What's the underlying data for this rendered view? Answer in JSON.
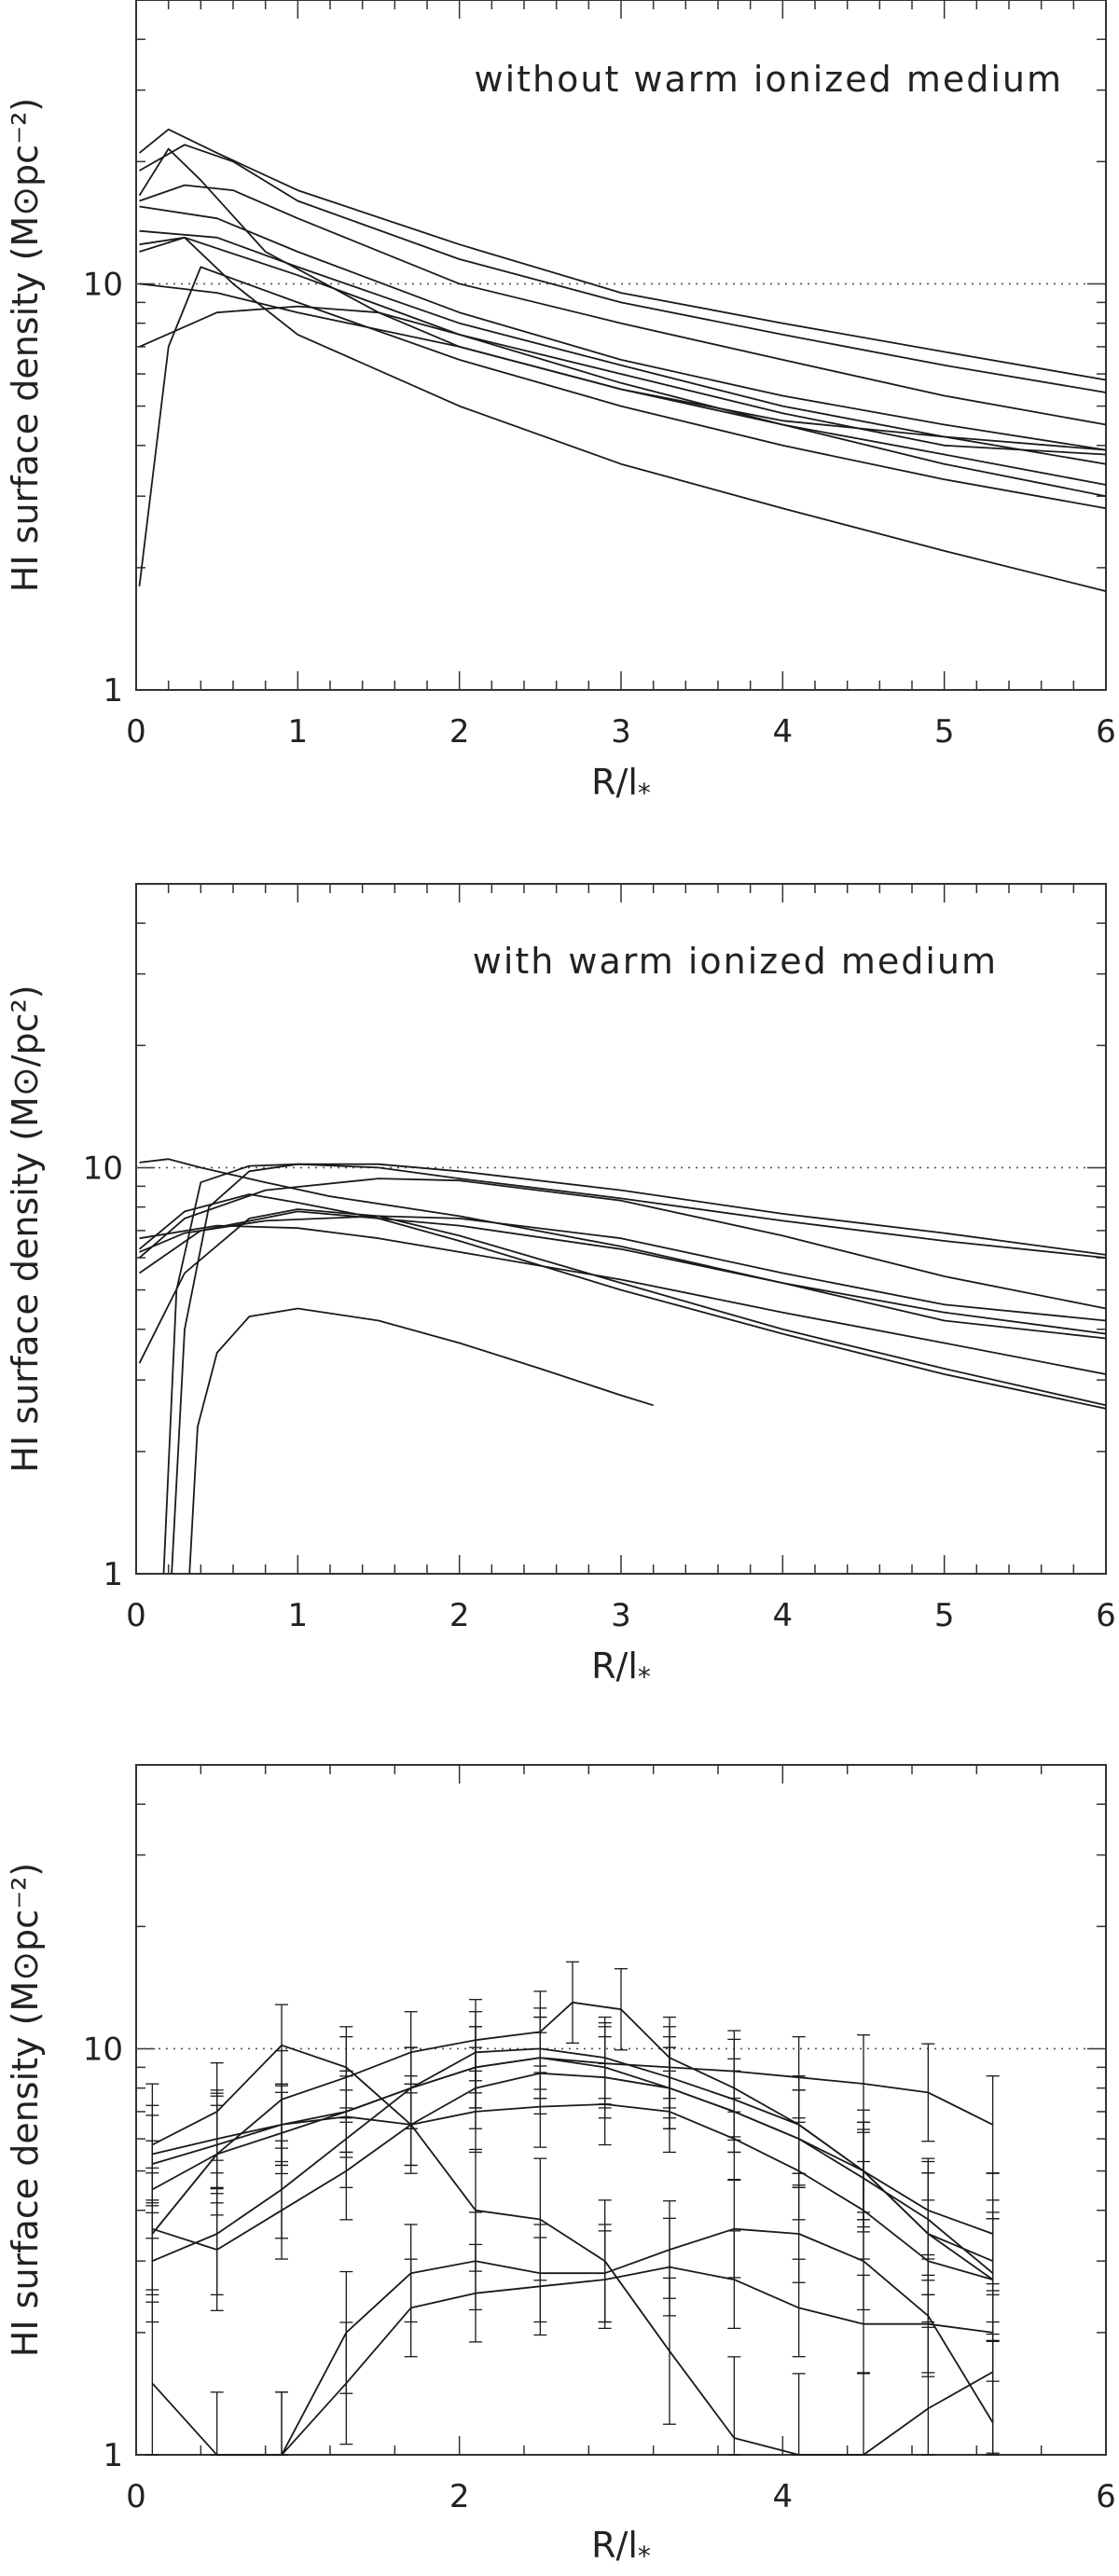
{
  "chart_data": [
    {
      "type": "line",
      "yscale": "log",
      "xlim": [
        0,
        6
      ],
      "ylim": [
        1,
        50
      ],
      "xticks": [
        "0",
        "1",
        "2",
        "3",
        "4",
        "5",
        "6"
      ],
      "yticks": [
        "1",
        "10"
      ],
      "xlabel": "R/l*",
      "ylabel": "HI surface density (M⊙pc⁻²)",
      "annotation": "without warm ionized medium",
      "reference_line_y": 10,
      "grid": false,
      "series": [
        {
          "x": [
            0.02,
            0.2,
            0.5,
            1,
            2,
            3,
            4,
            5,
            6
          ],
          "y": [
            21,
            24,
            21,
            17,
            12.5,
            9.5,
            8,
            6.8,
            5.8
          ]
        },
        {
          "x": [
            0.02,
            0.3,
            0.6,
            1,
            2,
            3,
            4,
            5,
            6
          ],
          "y": [
            19,
            22,
            20,
            16,
            11.5,
            9,
            7.5,
            6.3,
            5.4
          ]
        },
        {
          "x": [
            0.02,
            0.2,
            0.4,
            0.8,
            1.5,
            2,
            3,
            4,
            5,
            6
          ],
          "y": [
            16.5,
            21.5,
            18,
            12,
            8.5,
            7,
            5.5,
            4.6,
            4.2,
            3.9
          ]
        },
        {
          "x": [
            0.02,
            0.3,
            0.6,
            1,
            2,
            3,
            4,
            5,
            6
          ],
          "y": [
            16,
            17.5,
            17,
            14.5,
            10,
            8,
            6.5,
            5.3,
            4.5
          ]
        },
        {
          "x": [
            0.02,
            0.5,
            1,
            2,
            3,
            4,
            5,
            6
          ],
          "y": [
            15.5,
            14.5,
            12,
            8.5,
            6.5,
            5.3,
            4.5,
            3.9
          ]
        },
        {
          "x": [
            0.02,
            0.5,
            1,
            2,
            3,
            4,
            5,
            6
          ],
          "y": [
            13.5,
            13,
            11,
            8,
            6.3,
            5,
            4.2,
            3.6
          ]
        },
        {
          "x": [
            0.02,
            0.3,
            1,
            2,
            3,
            4,
            5,
            6
          ],
          "y": [
            12.5,
            13,
            10.5,
            7.5,
            5.7,
            4.5,
            3.6,
            3.0
          ]
        },
        {
          "x": [
            0.02,
            0.2,
            0.4,
            1,
            2,
            3,
            4,
            5,
            6
          ],
          "y": [
            1.8,
            7,
            11,
            9,
            6.5,
            5,
            4,
            3.3,
            2.8
          ]
        },
        {
          "x": [
            0.02,
            0.5,
            1,
            1.5,
            2,
            3,
            4,
            5,
            6
          ],
          "y": [
            7,
            8.5,
            8.8,
            8.5,
            7.5,
            6,
            4.8,
            4,
            3.8
          ]
        },
        {
          "x": [
            0.02,
            0.5,
            1,
            2,
            3,
            4,
            5,
            6
          ],
          "y": [
            10,
            9.5,
            8.5,
            7,
            5.5,
            4.5,
            3.8,
            3.2
          ]
        },
        {
          "x": [
            0.02,
            0.3,
            0.6,
            1,
            2,
            3,
            4,
            5,
            6
          ],
          "y": [
            12,
            13,
            10,
            7.5,
            5,
            3.6,
            2.8,
            2.2,
            1.75
          ]
        }
      ]
    },
    {
      "type": "line",
      "yscale": "log",
      "xlim": [
        0,
        6
      ],
      "ylim": [
        1,
        50
      ],
      "xticks": [
        "0",
        "1",
        "2",
        "3",
        "4",
        "5",
        "6"
      ],
      "yticks": [
        "1",
        "10"
      ],
      "xlabel": "R/l*",
      "ylabel": "HI surface density (M⊙/pc²)",
      "annotation": "with warm ionized medium",
      "reference_line_y": 10,
      "grid": false,
      "series": [
        {
          "x": [
            0.02,
            0.2,
            0.4,
            0.8,
            1.2,
            2,
            3,
            4,
            5,
            6
          ],
          "y": [
            10.3,
            10.5,
            10,
            9.2,
            8.5,
            7.6,
            6.4,
            5.2,
            4.2,
            3.8
          ]
        },
        {
          "x": [
            0.22,
            0.3,
            0.45,
            0.7,
            1,
            1.5,
            2,
            3,
            4,
            5,
            6
          ],
          "y": [
            1,
            4,
            8,
            9.8,
            10.2,
            10.2,
            9.8,
            8.8,
            7.7,
            6.9,
            6.1
          ]
        },
        {
          "x": [
            0.17,
            0.25,
            0.4,
            0.7,
            1,
            1.5,
            2,
            3,
            4,
            5,
            6
          ],
          "y": [
            1,
            5,
            9.2,
            10.1,
            10.2,
            10,
            9.4,
            8.4,
            7.4,
            6.6,
            6.0
          ]
        },
        {
          "x": [
            0.02,
            0.3,
            0.8,
            1.5,
            2,
            3,
            4,
            5,
            6
          ],
          "y": [
            6,
            7.5,
            8.8,
            9.4,
            9.3,
            8.3,
            6.8,
            5.4,
            4.5
          ]
        },
        {
          "x": [
            0.02,
            0.3,
            0.8,
            1.5,
            2,
            3,
            4,
            5,
            6
          ],
          "y": [
            6.2,
            6.9,
            7.4,
            7.6,
            7.5,
            6.7,
            5.5,
            4.6,
            4.2
          ]
        },
        {
          "x": [
            0.02,
            0.4,
            1,
            1.5,
            2,
            3,
            4,
            5,
            6
          ],
          "y": [
            5.5,
            7,
            7.8,
            7.5,
            7.2,
            6.3,
            5.2,
            4.4,
            3.9
          ]
        },
        {
          "x": [
            0.02,
            0.5,
            1,
            1.5,
            2,
            3,
            4,
            5,
            6
          ],
          "y": [
            6.7,
            7.2,
            7.1,
            6.7,
            6.2,
            5.3,
            4.4,
            3.7,
            3.1
          ]
        },
        {
          "x": [
            0.02,
            0.3,
            0.7,
            1,
            1.5,
            2,
            3,
            4,
            5,
            6
          ],
          "y": [
            3.3,
            5.5,
            7.5,
            7.9,
            7.6,
            6.8,
            5.2,
            4,
            3.2,
            2.6
          ]
        },
        {
          "x": [
            0.02,
            0.3,
            0.7,
            1,
            1.5,
            2,
            3,
            4,
            5,
            6
          ],
          "y": [
            6.3,
            7.8,
            8.6,
            8.2,
            7.5,
            6.6,
            5,
            3.9,
            3.1,
            2.55
          ]
        },
        {
          "x": [
            0.33,
            0.38,
            0.5,
            0.7,
            1,
            1.5,
            2,
            2.5,
            3,
            3.2
          ],
          "y": [
            1,
            2.3,
            3.5,
            4.3,
            4.5,
            4.2,
            3.7,
            3.2,
            2.75,
            2.6
          ]
        }
      ]
    },
    {
      "type": "line",
      "yscale": "log",
      "xlim": [
        0,
        6
      ],
      "ylim": [
        1,
        50
      ],
      "xticks": [
        "0",
        "2",
        "4",
        "6"
      ],
      "yticks": [
        "1",
        "10"
      ],
      "xlabel": "R/l*",
      "ylabel": "HI surface density (M⊙pc⁻²)",
      "reference_line_y": 10,
      "error_bars": true,
      "grid": false,
      "series": [
        {
          "x": [
            0.1,
            0.5,
            0.9,
            1.3,
            1.7,
            2.1,
            2.5,
            2.7,
            3.0,
            3.3,
            3.7,
            4.1,
            4.5,
            4.9,
            5.3
          ],
          "y": [
            3.5,
            5.5,
            7.5,
            8.5,
            9.8,
            10.5,
            11,
            13,
            12.5,
            9.5,
            8,
            6.5,
            5,
            3.5,
            2.7
          ],
          "err": [
            0.15,
            0.15,
            0.12,
            0.1,
            0.1,
            0.1,
            0.1,
            0.1,
            0.1,
            0.1,
            0.12,
            0.12,
            0.15,
            0.15,
            0.15
          ]
        },
        {
          "x": [
            0.1,
            0.5,
            0.9,
            1.3,
            1.7,
            2.1,
            2.5,
            2.9,
            3.3,
            3.7,
            4.1,
            4.5,
            4.9,
            5.3
          ],
          "y": [
            5.5,
            6,
            6.5,
            7,
            8,
            9,
            9.5,
            9.2,
            9,
            8.8,
            8.5,
            8.2,
            7.8,
            6.5
          ],
          "err": [
            0.12,
            0.12,
            0.1,
            0.1,
            0.1,
            0.1,
            0.1,
            0.1,
            0.1,
            0.1,
            0.1,
            0.12,
            0.12,
            0.12
          ]
        },
        {
          "x": [
            0.1,
            0.5,
            0.9,
            1.3,
            1.7,
            2.1,
            2.5,
            2.9,
            3.3,
            3.7,
            4.1,
            4.5,
            4.9,
            5.3
          ],
          "y": [
            5.8,
            7,
            10.2,
            9,
            6.5,
            4,
            3.8,
            3,
            1.8,
            1.1,
            1,
            1,
            1.3,
            1.6
          ],
          "err": [
            0.15,
            0.12,
            0.1,
            0.1,
            0.12,
            0.15,
            0.15,
            0.15,
            0.18,
            0.2,
            0.2,
            0.2,
            0.2,
            0.2
          ]
        },
        {
          "x": [
            0.1,
            0.5,
            0.9,
            1.3,
            1.7,
            2.1,
            2.5,
            2.9,
            3.3,
            3.7,
            4.1,
            4.5,
            4.9,
            5.3
          ],
          "y": [
            4.5,
            5.5,
            6.2,
            7,
            8,
            9,
            9.5,
            9,
            8,
            7,
            6,
            5,
            4,
            3.5
          ],
          "err": [
            0.12,
            0.12,
            0.1,
            0.1,
            0.1,
            0.1,
            0.1,
            0.1,
            0.1,
            0.1,
            0.12,
            0.12,
            0.12,
            0.15
          ]
        },
        {
          "x": [
            0.1,
            0.5,
            0.9,
            1.3,
            1.7,
            2.1,
            2.5,
            2.9,
            3.3,
            3.7,
            4.1,
            4.5,
            4.9,
            5.3
          ],
          "y": [
            3,
            3.5,
            4.5,
            6,
            8,
            9.8,
            10,
            9.5,
            8.5,
            7.5,
            6.5,
            5,
            3.5,
            3
          ],
          "err": [
            0.15,
            0.15,
            0.12,
            0.12,
            0.1,
            0.1,
            0.1,
            0.1,
            0.1,
            0.1,
            0.12,
            0.12,
            0.15,
            0.15
          ]
        },
        {
          "x": [
            0.1,
            0.5,
            0.9,
            1.3,
            1.7,
            2.1,
            2.5,
            2.9,
            3.3,
            3.7,
            4.1,
            4.5,
            4.9,
            5.3
          ],
          "y": [
            3.6,
            3.2,
            4,
            5,
            6.5,
            8,
            8.7,
            8.5,
            8,
            7,
            6,
            4.8,
            3.8,
            2.8
          ],
          "err": [
            0.15,
            0.15,
            0.12,
            0.12,
            0.1,
            0.1,
            0.1,
            0.1,
            0.1,
            0.1,
            0.12,
            0.12,
            0.15,
            0.15
          ]
        },
        {
          "x": [
            0.1,
            0.5,
            0.9,
            1.3,
            1.7,
            2.1,
            2.5,
            2.9,
            3.3,
            3.7,
            4.1,
            4.5,
            4.9,
            5.3
          ],
          "y": [
            5.2,
            5.8,
            6.5,
            6.8,
            6.5,
            7,
            7.2,
            7.3,
            7,
            6,
            5,
            4,
            3,
            2.7
          ],
          "err": [
            0.12,
            0.12,
            0.1,
            0.1,
            0.1,
            0.1,
            0.1,
            0.1,
            0.1,
            0.1,
            0.12,
            0.12,
            0.15,
            0.15
          ]
        },
        {
          "x": [
            0.1,
            0.5,
            0.9,
            1.3,
            1.7,
            2.1,
            2.5,
            2.9,
            3.3,
            3.7,
            4.1,
            4.5,
            4.9,
            5.3
          ],
          "y": [
            1.5,
            0.9,
            0.9,
            1.5,
            2.3,
            2.5,
            2.6,
            2.7,
            2.9,
            2.7,
            2.3,
            2.1,
            2.1,
            2.0
          ],
          "err": [
            0.2,
            0.2,
            0.2,
            0.15,
            0.12,
            0.12,
            0.12,
            0.12,
            0.12,
            0.12,
            0.12,
            0.12,
            0.12,
            0.12
          ]
        },
        {
          "x": [
            0.9,
            1.3,
            1.7,
            2.1,
            2.5,
            2.9,
            3.3,
            3.7,
            4.1,
            4.5,
            4.9,
            5.3
          ],
          "y": [
            0.9,
            2,
            2.8,
            3,
            2.8,
            2.8,
            3.2,
            3.6,
            3.5,
            3,
            2.2,
            1.2
          ],
          "err": [
            0.2,
            0.15,
            0.12,
            0.12,
            0.12,
            0.12,
            0.12,
            0.12,
            0.12,
            0.12,
            0.15,
            0.2
          ]
        }
      ]
    }
  ]
}
